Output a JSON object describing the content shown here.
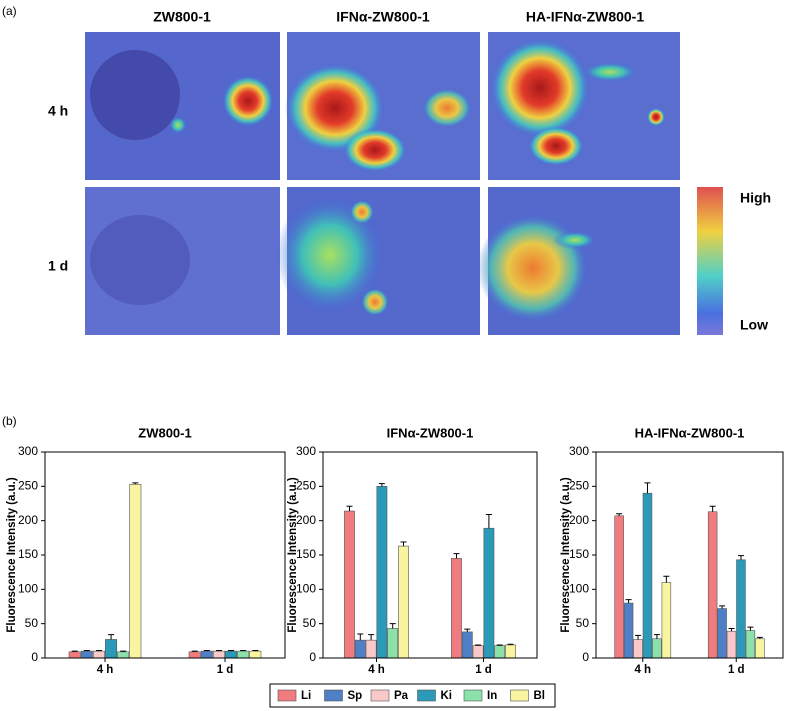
{
  "panel_a": {
    "label": "(a)",
    "columns": [
      "ZW800-1",
      "IFNα-ZW800-1",
      "HA-IFNα-ZW800-1"
    ],
    "rows": [
      "4 h",
      "1 d"
    ],
    "colorbar": {
      "high": "High",
      "low": "Low"
    }
  },
  "panel_b": {
    "label": "(b)"
  },
  "chart_data": [
    {
      "type": "bar",
      "title": "ZW800-1",
      "ylabel": "Fluorescence Intensity (a.u.)",
      "categories": [
        "4 h",
        "1 d"
      ],
      "series": [
        {
          "name": "Li",
          "color": "#f07c80",
          "values": [
            9,
            9
          ],
          "errors": [
            1,
            1
          ]
        },
        {
          "name": "Sp",
          "color": "#4f7fc4",
          "values": [
            10,
            10
          ],
          "errors": [
            1,
            1
          ]
        },
        {
          "name": "Pa",
          "color": "#f9c8c8",
          "values": [
            10,
            10
          ],
          "errors": [
            1,
            1
          ]
        },
        {
          "name": "Ki",
          "color": "#2a9ab8",
          "values": [
            27,
            10
          ],
          "errors": [
            7,
            1
          ]
        },
        {
          "name": "In",
          "color": "#8ce0aa",
          "values": [
            9,
            10
          ],
          "errors": [
            1,
            1
          ]
        },
        {
          "name": "Bl",
          "color": "#f8f4a0",
          "values": [
            253,
            10
          ],
          "errors": [
            2,
            1
          ]
        }
      ],
      "ylim": [
        0,
        300
      ],
      "yticks": [
        0,
        50,
        100,
        150,
        200,
        250,
        300
      ]
    },
    {
      "type": "bar",
      "title": "IFNα-ZW800-1",
      "ylabel": "Fluorescence Intensity (a.u.)",
      "categories": [
        "4 h",
        "1 d"
      ],
      "series": [
        {
          "values": [
            214,
            145
          ],
          "errors": [
            7,
            7
          ]
        },
        {
          "values": [
            26,
            38
          ],
          "errors": [
            9,
            4
          ]
        },
        {
          "values": [
            26,
            18
          ],
          "errors": [
            8,
            1
          ]
        },
        {
          "values": [
            250,
            189
          ],
          "errors": [
            4,
            20
          ]
        },
        {
          "values": [
            43,
            18
          ],
          "errors": [
            7,
            1
          ]
        },
        {
          "values": [
            163,
            19
          ],
          "errors": [
            6,
            1
          ]
        }
      ],
      "ylim": [
        0,
        300
      ],
      "yticks": [
        0,
        50,
        100,
        150,
        200,
        250,
        300
      ]
    },
    {
      "type": "bar",
      "title": "HA-IFNα-ZW800-1",
      "ylabel": "Fluorescence Intensity (a.u.)",
      "categories": [
        "4 h",
        "1 d"
      ],
      "series": [
        {
          "values": [
            207,
            213
          ],
          "errors": [
            3,
            8
          ]
        },
        {
          "values": [
            80,
            72
          ],
          "errors": [
            5,
            4
          ]
        },
        {
          "values": [
            27,
            39
          ],
          "errors": [
            6,
            4
          ]
        },
        {
          "values": [
            240,
            143
          ],
          "errors": [
            15,
            6
          ]
        },
        {
          "values": [
            28,
            40
          ],
          "errors": [
            6,
            5
          ]
        },
        {
          "values": [
            110,
            28
          ],
          "errors": [
            9,
            2
          ]
        }
      ],
      "ylim": [
        0,
        300
      ],
      "yticks": [
        0,
        50,
        100,
        150,
        200,
        250,
        300
      ]
    }
  ]
}
